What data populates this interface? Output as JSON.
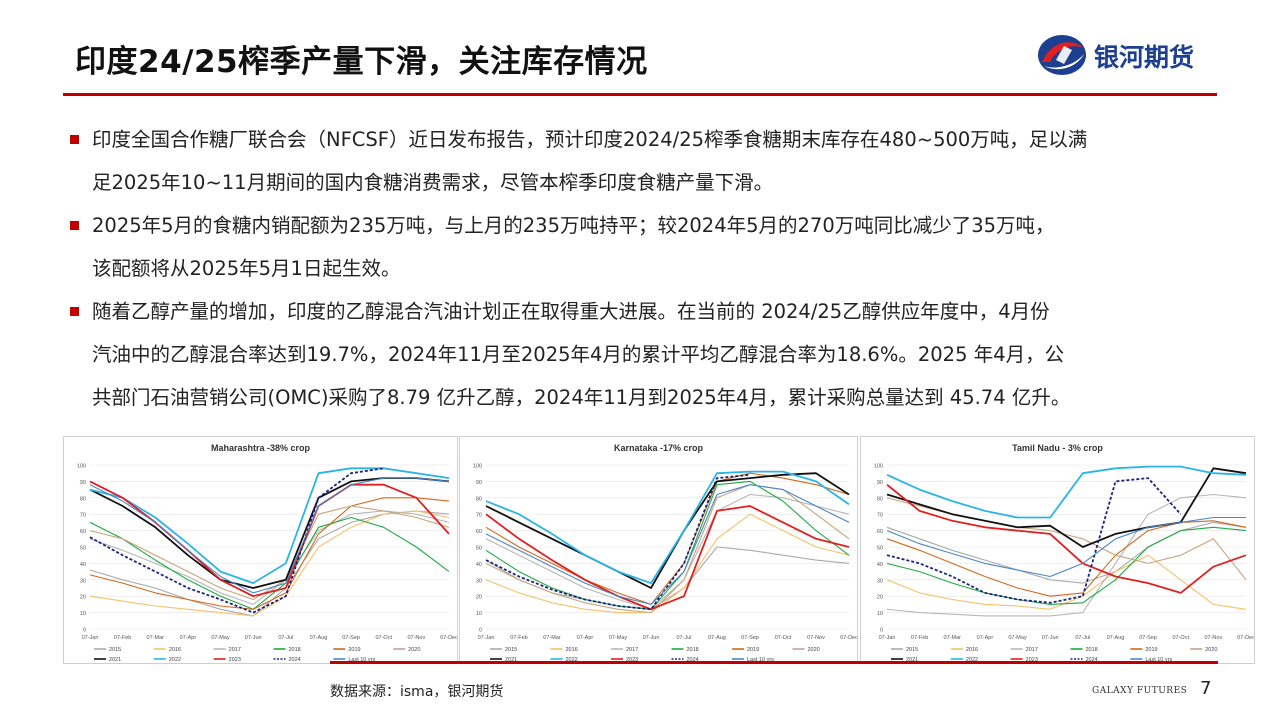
{
  "header": {
    "title": "印度24/25榨季产量下滑，关注库存情况",
    "logo_text": "银河期货"
  },
  "bullets": [
    {
      "line1": "印度全国合作糖厂联合会（NFCSF）近日发布报告，预计印度2024/25榨季食糖期末库存在480~500万吨，足以满",
      "line2": "足2025年10~11月期间的国内食糖消费需求，尽管本榨季印度食糖产量下滑。"
    },
    {
      "line1": "2025年5月的食糖内销配额为235万吨，与上月的235万吨持平；较2024年5月的270万吨同比减少了35万吨，",
      "line2": "该配额将从2025年5月1日起生效。"
    },
    {
      "line1": "随着乙醇产量的增加，印度的乙醇混合汽油计划正在取得重大进展。在当前的 2024/25乙醇供应年度中，4月份",
      "line2": "汽油中的乙醇混合率达到19.7%，2024年11月至2025年4月的累计平均乙醇混合率为18.6%。2025 年4月，公",
      "line3": "共部门石油营销公司(OMC)采购了8.79 亿升乙醇，2024年11月到2025年4月，累计采购总量达到 45.74 亿升。"
    }
  ],
  "footer": {
    "source": "数据来源：isma，银河期货",
    "brand": "GALAXY FUTURES",
    "page": "7"
  },
  "colors": {
    "2015": "#aaaaaa",
    "2016": "#f5c26b",
    "2017": "#b7b7b7",
    "2018": "#22aa44",
    "2019": "#d2691e",
    "2020": "#c8a47e",
    "2021": "#111111",
    "2022": "#2bb5e6",
    "2023": "#e02020",
    "2024": "#1a237e",
    "Last 10 yrs": "#4a86c8"
  },
  "chart_data": [
    {
      "type": "line",
      "title": "Maharashtra -38% crop",
      "x": [
        "07-Jan",
        "07-Feb",
        "07-Mar",
        "07-Apr",
        "07-May",
        "07-Jun",
        "07-Jul",
        "07-Aug",
        "07-Sep",
        "07-Oct",
        "07-Nov",
        "07-Dec"
      ],
      "ylim": [
        0,
        100
      ],
      "yticks": [
        0,
        10,
        20,
        30,
        40,
        50,
        60,
        70,
        80,
        90,
        100
      ],
      "series": [
        {
          "name": "2015",
          "values": [
            36,
            30,
            25,
            18,
            12,
            8,
            25,
            55,
            65,
            70,
            72,
            70
          ]
        },
        {
          "name": "2016",
          "values": [
            20,
            17,
            14,
            12,
            10,
            8,
            20,
            50,
            62,
            70,
            72,
            68
          ]
        },
        {
          "name": "2017",
          "values": [
            55,
            48,
            40,
            32,
            22,
            15,
            30,
            60,
            70,
            72,
            70,
            65
          ]
        },
        {
          "name": "2018",
          "values": [
            65,
            55,
            42,
            30,
            20,
            12,
            28,
            62,
            68,
            62,
            50,
            35
          ]
        },
        {
          "name": "2019",
          "values": [
            33,
            28,
            22,
            18,
            14,
            12,
            22,
            58,
            75,
            80,
            80,
            78
          ]
        },
        {
          "name": "2020",
          "values": [
            60,
            55,
            45,
            35,
            25,
            18,
            30,
            70,
            75,
            72,
            68,
            62
          ]
        },
        {
          "name": "2021",
          "values": [
            85,
            75,
            62,
            45,
            30,
            25,
            30,
            80,
            90,
            92,
            92,
            90
          ]
        },
        {
          "name": "2022",
          "values": [
            85,
            80,
            68,
            52,
            35,
            28,
            40,
            95,
            98,
            98,
            95,
            92
          ]
        },
        {
          "name": "2023",
          "values": [
            90,
            80,
            65,
            48,
            30,
            20,
            25,
            75,
            88,
            88,
            80,
            58
          ]
        },
        {
          "name": "2024",
          "values": [
            56,
            45,
            35,
            25,
            18,
            10,
            20,
            80,
            95,
            98,
            null,
            null
          ]
        },
        {
          "name": "Last 10 yrs",
          "values": [
            88,
            78,
            65,
            48,
            32,
            22,
            28,
            75,
            88,
            92,
            92,
            90
          ]
        }
      ]
    },
    {
      "type": "line",
      "title": "Karnataka -17% crop",
      "x": [
        "07-Jan",
        "07-Feb",
        "07-Mar",
        "07-Apr",
        "07-May",
        "07-Jun",
        "07-Jul",
        "07-Aug",
        "07-Sep",
        "07-Oct",
        "07-Nov",
        "07-Dec"
      ],
      "ylim": [
        0,
        100
      ],
      "yticks": [
        0,
        10,
        20,
        30,
        40,
        50,
        60,
        70,
        80,
        90,
        100
      ],
      "series": [
        {
          "name": "2015",
          "values": [
            42,
            30,
            22,
            18,
            14,
            12,
            25,
            50,
            48,
            45,
            42,
            40
          ]
        },
        {
          "name": "2016",
          "values": [
            30,
            22,
            16,
            12,
            10,
            10,
            25,
            55,
            70,
            60,
            50,
            45
          ]
        },
        {
          "name": "2017",
          "values": [
            55,
            45,
            35,
            25,
            18,
            12,
            30,
            72,
            82,
            80,
            75,
            70
          ]
        },
        {
          "name": "2018",
          "values": [
            48,
            35,
            25,
            18,
            14,
            12,
            35,
            88,
            90,
            78,
            60,
            45
          ]
        },
        {
          "name": "2019",
          "values": [
            62,
            50,
            40,
            30,
            22,
            15,
            40,
            90,
            95,
            92,
            88,
            82
          ]
        },
        {
          "name": "2020",
          "values": [
            40,
            30,
            22,
            16,
            12,
            10,
            30,
            80,
            88,
            85,
            70,
            55
          ]
        },
        {
          "name": "2021",
          "values": [
            75,
            65,
            55,
            45,
            35,
            25,
            60,
            90,
            92,
            94,
            95,
            82
          ]
        },
        {
          "name": "2022",
          "values": [
            78,
            70,
            58,
            45,
            35,
            28,
            60,
            95,
            96,
            96,
            90,
            76
          ]
        },
        {
          "name": "2023",
          "values": [
            70,
            55,
            42,
            30,
            20,
            12,
            20,
            72,
            75,
            65,
            55,
            50
          ]
        },
        {
          "name": "2024",
          "values": [
            42,
            32,
            24,
            18,
            14,
            12,
            40,
            92,
            94,
            null,
            null,
            null
          ]
        },
        {
          "name": "Last 10 yrs",
          "values": [
            58,
            48,
            38,
            28,
            20,
            15,
            35,
            82,
            88,
            85,
            75,
            65
          ]
        }
      ]
    },
    {
      "type": "line",
      "title": "Tamil Nadu - 3% crop",
      "x": [
        "07-Jan",
        "07-Feb",
        "07-Mar",
        "07-Apr",
        "07-May",
        "07-Jun",
        "07-Jul",
        "07-Aug",
        "07-Sep",
        "07-Oct",
        "07-Nov",
        "07-Dec"
      ],
      "ylim": [
        0,
        100
      ],
      "yticks": [
        0,
        10,
        20,
        30,
        40,
        50,
        60,
        70,
        80,
        90,
        100
      ],
      "series": [
        {
          "name": "2015",
          "values": [
            62,
            55,
            48,
            42,
            36,
            30,
            28,
            35,
            50,
            60,
            65,
            62
          ]
        },
        {
          "name": "2016",
          "values": [
            30,
            22,
            18,
            15,
            14,
            12,
            20,
            35,
            45,
            30,
            15,
            12
          ]
        },
        {
          "name": "2017",
          "values": [
            12,
            10,
            9,
            8,
            8,
            8,
            10,
            40,
            70,
            80,
            82,
            80
          ]
        },
        {
          "name": "2018",
          "values": [
            40,
            35,
            28,
            22,
            18,
            15,
            16,
            30,
            50,
            60,
            62,
            60
          ]
        },
        {
          "name": "2019",
          "values": [
            55,
            48,
            40,
            32,
            25,
            20,
            22,
            45,
            60,
            65,
            66,
            62
          ]
        },
        {
          "name": "2020",
          "values": [
            80,
            75,
            70,
            66,
            62,
            60,
            55,
            45,
            40,
            45,
            55,
            30
          ]
        },
        {
          "name": "2021",
          "values": [
            82,
            76,
            70,
            66,
            62,
            63,
            50,
            58,
            62,
            65,
            98,
            95
          ]
        },
        {
          "name": "2022",
          "values": [
            94,
            85,
            78,
            72,
            68,
            68,
            95,
            98,
            99,
            99,
            95,
            94
          ]
        },
        {
          "name": "2023",
          "values": [
            88,
            72,
            66,
            62,
            60,
            58,
            40,
            32,
            28,
            22,
            38,
            45
          ]
        },
        {
          "name": "2024",
          "values": [
            45,
            40,
            32,
            22,
            18,
            16,
            20,
            90,
            92,
            70,
            null,
            null
          ]
        },
        {
          "name": "Last 10 yrs",
          "values": [
            60,
            52,
            46,
            40,
            36,
            32,
            40,
            55,
            62,
            65,
            68,
            68
          ]
        }
      ]
    }
  ]
}
